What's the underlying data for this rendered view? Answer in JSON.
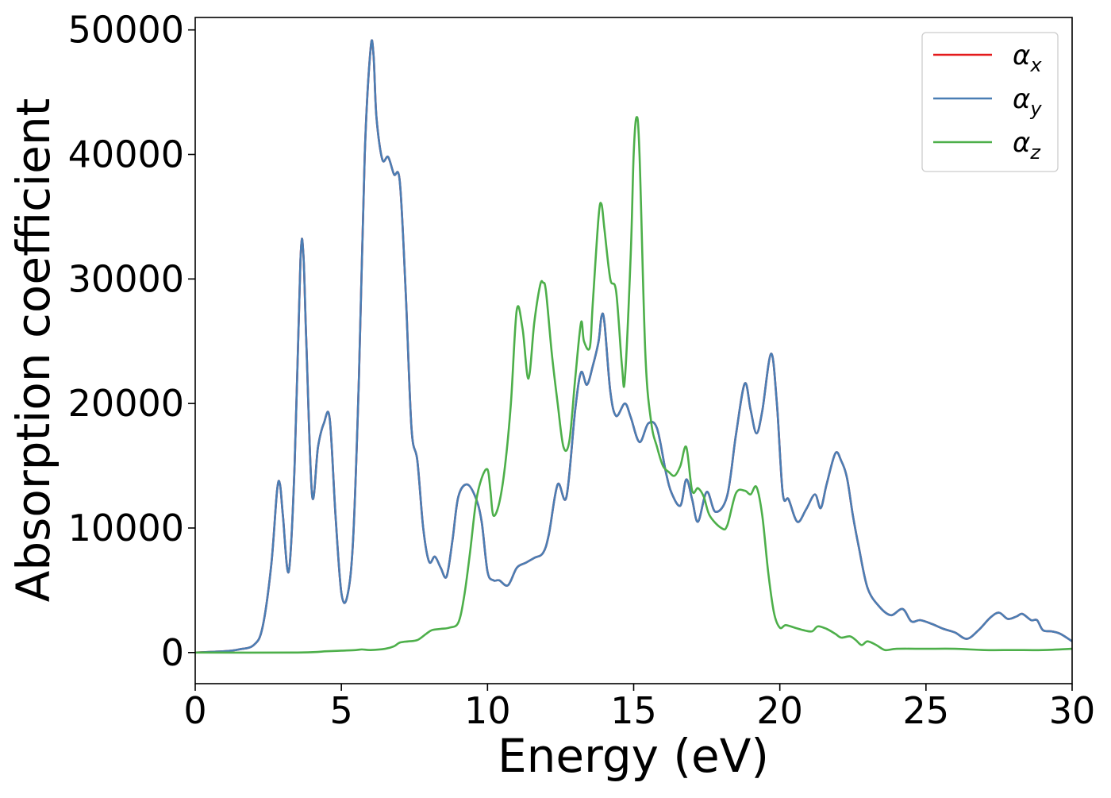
{
  "chart_data": {
    "type": "line",
    "title": "",
    "xlabel": "Energy (eV)",
    "ylabel": "Absorption coefficient",
    "xlim": [
      0,
      30
    ],
    "ylim": [
      -2500,
      51000
    ],
    "xticks": [
      "0",
      "5",
      "10",
      "15",
      "20",
      "25",
      "30"
    ],
    "yticks": [
      "0",
      "10000",
      "20000",
      "30000",
      "40000",
      "50000"
    ],
    "grid": false,
    "legend_position": "top-right",
    "series": [
      {
        "name": "α_x",
        "symbol": "α",
        "subscript": "x",
        "color": "#e41a1c",
        "x": [
          0,
          1,
          1.5,
          2,
          2.3,
          2.6,
          2.8,
          2.9,
          3.0,
          3.2,
          3.4,
          3.6,
          3.7,
          3.8,
          4.0,
          4.2,
          4.4,
          4.6,
          4.8,
          5.0,
          5.2,
          5.4,
          5.6,
          5.8,
          6.0,
          6.1,
          6.2,
          6.4,
          6.6,
          6.8,
          7.0,
          7.2,
          7.4,
          7.6,
          7.8,
          8.0,
          8.2,
          8.4,
          8.6,
          8.8,
          9.0,
          9.3,
          9.6,
          9.8,
          10.0,
          10.2,
          10.4,
          10.7,
          11.0,
          11.3,
          11.6,
          11.9,
          12.1,
          12.4,
          12.7,
          13.0,
          13.2,
          13.4,
          13.6,
          13.8,
          13.9,
          14.0,
          14.2,
          14.4,
          14.7,
          14.9,
          15.2,
          15.5,
          15.8,
          16.1,
          16.3,
          16.6,
          16.8,
          17.0,
          17.2,
          17.5,
          17.8,
          18.2,
          18.5,
          18.8,
          19.0,
          19.2,
          19.4,
          19.7,
          19.9,
          20.1,
          20.3,
          20.6,
          20.9,
          21.2,
          21.4,
          21.6,
          21.9,
          22.1,
          22.3,
          22.5,
          22.7,
          23.0,
          23.4,
          23.8,
          24.2,
          24.5,
          24.8,
          25.2,
          25.6,
          26.0,
          26.4,
          26.8,
          27.2,
          27.5,
          27.8,
          28.1,
          28.3,
          28.6,
          28.8,
          29.0,
          29.3,
          29.6,
          30.0
        ],
        "y": [
          0,
          100,
          250,
          600,
          2000,
          7000,
          13000,
          13500,
          11000,
          6500,
          15000,
          31500,
          32000,
          25000,
          12600,
          16500,
          18400,
          18800,
          11000,
          4800,
          4500,
          9000,
          22000,
          40000,
          48500,
          48000,
          43000,
          39600,
          39800,
          38400,
          37800,
          29000,
          18000,
          15400,
          10000,
          7300,
          7700,
          6800,
          6100,
          9000,
          12500,
          13500,
          12400,
          10500,
          6500,
          5800,
          5800,
          5400,
          6800,
          7200,
          7600,
          8000,
          9500,
          13500,
          12500,
          19500,
          22500,
          21500,
          23000,
          25000,
          27000,
          26500,
          21000,
          19000,
          20000,
          18900,
          16900,
          18400,
          18000,
          14500,
          12800,
          11800,
          13900,
          12300,
          10500,
          12900,
          11300,
          12600,
          17500,
          21600,
          19500,
          17600,
          19400,
          24000,
          20000,
          12800,
          12300,
          10500,
          11500,
          12700,
          11600,
          13500,
          16000,
          15400,
          14000,
          11000,
          8500,
          5200,
          3700,
          3000,
          3500,
          2500,
          2600,
          2300,
          1900,
          1600,
          1100,
          1800,
          2800,
          3200,
          2700,
          2900,
          3100,
          2600,
          2600,
          1800,
          1700,
          1500,
          900
        ]
      },
      {
        "name": "α_y",
        "symbol": "α",
        "subscript": "y",
        "color": "#4a7eb4",
        "x": [
          0,
          1,
          1.5,
          2,
          2.3,
          2.6,
          2.8,
          2.9,
          3.0,
          3.2,
          3.4,
          3.6,
          3.7,
          3.8,
          4.0,
          4.2,
          4.4,
          4.6,
          4.8,
          5.0,
          5.2,
          5.4,
          5.6,
          5.8,
          6.0,
          6.1,
          6.2,
          6.4,
          6.6,
          6.8,
          7.0,
          7.2,
          7.4,
          7.6,
          7.8,
          8.0,
          8.2,
          8.4,
          8.6,
          8.8,
          9.0,
          9.3,
          9.6,
          9.8,
          10.0,
          10.2,
          10.4,
          10.7,
          11.0,
          11.3,
          11.6,
          11.9,
          12.1,
          12.4,
          12.7,
          13.0,
          13.2,
          13.4,
          13.6,
          13.8,
          13.9,
          14.0,
          14.2,
          14.4,
          14.7,
          14.9,
          15.2,
          15.5,
          15.8,
          16.1,
          16.3,
          16.6,
          16.8,
          17.0,
          17.2,
          17.5,
          17.8,
          18.2,
          18.5,
          18.8,
          19.0,
          19.2,
          19.4,
          19.7,
          19.9,
          20.1,
          20.3,
          20.6,
          20.9,
          21.2,
          21.4,
          21.6,
          21.9,
          22.1,
          22.3,
          22.5,
          22.7,
          23.0,
          23.4,
          23.8,
          24.2,
          24.5,
          24.8,
          25.2,
          25.6,
          26.0,
          26.4,
          26.8,
          27.2,
          27.5,
          27.8,
          28.1,
          28.3,
          28.6,
          28.8,
          29.0,
          29.3,
          29.6,
          30.0
        ],
        "y": [
          0,
          100,
          250,
          600,
          2000,
          7000,
          13000,
          13500,
          11000,
          6500,
          15000,
          31500,
          32000,
          25000,
          12600,
          16500,
          18400,
          18800,
          11000,
          4800,
          4500,
          9000,
          22000,
          40000,
          48500,
          48000,
          43000,
          39600,
          39800,
          38400,
          37800,
          29000,
          18000,
          15400,
          10000,
          7300,
          7700,
          6800,
          6100,
          9000,
          12500,
          13500,
          12400,
          10500,
          6500,
          5800,
          5800,
          5400,
          6800,
          7200,
          7600,
          8000,
          9500,
          13500,
          12500,
          19500,
          22500,
          21500,
          23000,
          25000,
          27000,
          26500,
          21000,
          19000,
          20000,
          18900,
          16900,
          18400,
          18000,
          14500,
          12800,
          11800,
          13900,
          12300,
          10500,
          12900,
          11300,
          12600,
          17500,
          21600,
          19500,
          17600,
          19400,
          24000,
          20000,
          12800,
          12300,
          10500,
          11500,
          12700,
          11600,
          13500,
          16000,
          15400,
          14000,
          11000,
          8500,
          5200,
          3700,
          3000,
          3500,
          2500,
          2600,
          2300,
          1900,
          1600,
          1100,
          1800,
          2800,
          3200,
          2700,
          2900,
          3100,
          2600,
          2600,
          1800,
          1700,
          1500,
          900
        ]
      },
      {
        "name": "α_z",
        "symbol": "α",
        "subscript": "z",
        "color": "#4daf4a",
        "x": [
          0,
          3.5,
          4.5,
          5.0,
          5.5,
          5.7,
          6.0,
          6.5,
          6.8,
          7.0,
          7.3,
          7.6,
          7.9,
          8.1,
          8.4,
          8.7,
          9.0,
          9.2,
          9.4,
          9.6,
          9.8,
          10.0,
          10.1,
          10.2,
          10.4,
          10.6,
          10.8,
          11.0,
          11.2,
          11.4,
          11.6,
          11.8,
          11.9,
          12.0,
          12.2,
          12.4,
          12.6,
          12.8,
          13.0,
          13.2,
          13.3,
          13.5,
          13.6,
          13.8,
          13.9,
          14.0,
          14.2,
          14.4,
          14.6,
          14.7,
          14.9,
          15.0,
          15.1,
          15.2,
          15.4,
          15.6,
          15.8,
          16.0,
          16.2,
          16.4,
          16.6,
          16.8,
          17.0,
          17.2,
          17.4,
          17.6,
          18.0,
          18.2,
          18.5,
          18.8,
          19.0,
          19.2,
          19.4,
          19.6,
          19.8,
          20.0,
          20.2,
          20.5,
          20.8,
          21.1,
          21.3,
          21.6,
          21.9,
          22.1,
          22.4,
          22.6,
          22.8,
          23.0,
          23.3,
          23.6,
          24.0,
          25.0,
          26.0,
          27.0,
          28.0,
          29.0,
          30.0
        ],
        "y": [
          0,
          0,
          100,
          150,
          200,
          250,
          200,
          300,
          500,
          800,
          900,
          1000,
          1500,
          1800,
          1900,
          2000,
          2400,
          4500,
          8000,
          12000,
          14000,
          14700,
          13000,
          11000,
          12000,
          15000,
          20000,
          27500,
          26000,
          22000,
          26500,
          29500,
          29700,
          29000,
          24000,
          20000,
          16500,
          17000,
          22000,
          26500,
          25000,
          24500,
          28000,
          35000,
          36000,
          34000,
          30000,
          29000,
          23000,
          22000,
          32000,
          40000,
          43000,
          40000,
          24000,
          18500,
          16500,
          15000,
          14500,
          14200,
          15000,
          16500,
          13000,
          13200,
          12500,
          11000,
          10000,
          10200,
          12800,
          13000,
          12700,
          13300,
          11000,
          6500,
          3200,
          2000,
          2200,
          2000,
          1800,
          1700,
          2100,
          1900,
          1500,
          1200,
          1300,
          1000,
          600,
          900,
          600,
          200,
          300,
          300,
          300,
          200,
          200,
          200,
          300
        ]
      }
    ]
  }
}
